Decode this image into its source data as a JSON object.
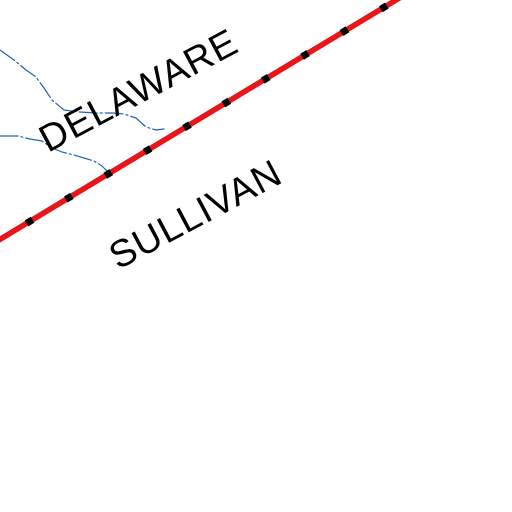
{
  "map": {
    "background_color": "#ffffff",
    "labels": {
      "upper_county": "DELAWARE",
      "lower_county": "SULLIVAN"
    },
    "boundary": {
      "type": "county-line",
      "fill_color": "#e8151b",
      "dash_color": "#000000"
    },
    "streams": {
      "color": "#1f62b0"
    },
    "label_color": "#000000"
  }
}
